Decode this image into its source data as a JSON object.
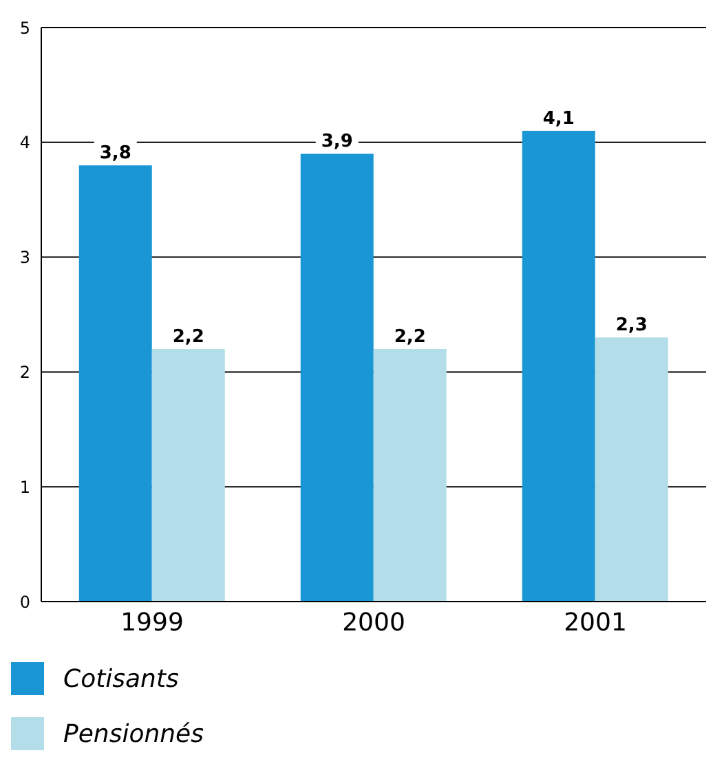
{
  "chart_data": {
    "type": "bar",
    "categories": [
      "1999",
      "2000",
      "2001"
    ],
    "series": [
      {
        "name": "Cotisants",
        "color": "#1a96d4",
        "values": [
          3.8,
          3.9,
          4.1
        ],
        "value_labels": [
          "3,8",
          "3,9",
          "4,1"
        ]
      },
      {
        "name": "Pensionnés",
        "color": "#b3dde9",
        "values": [
          2.2,
          2.2,
          2.3
        ],
        "value_labels": [
          "2,2",
          "2,2",
          "2,3"
        ]
      }
    ],
    "ylim": [
      0,
      5
    ],
    "yticks": [
      0,
      1,
      2,
      3,
      4,
      5
    ],
    "grid": "y",
    "legend": "bottom left"
  }
}
